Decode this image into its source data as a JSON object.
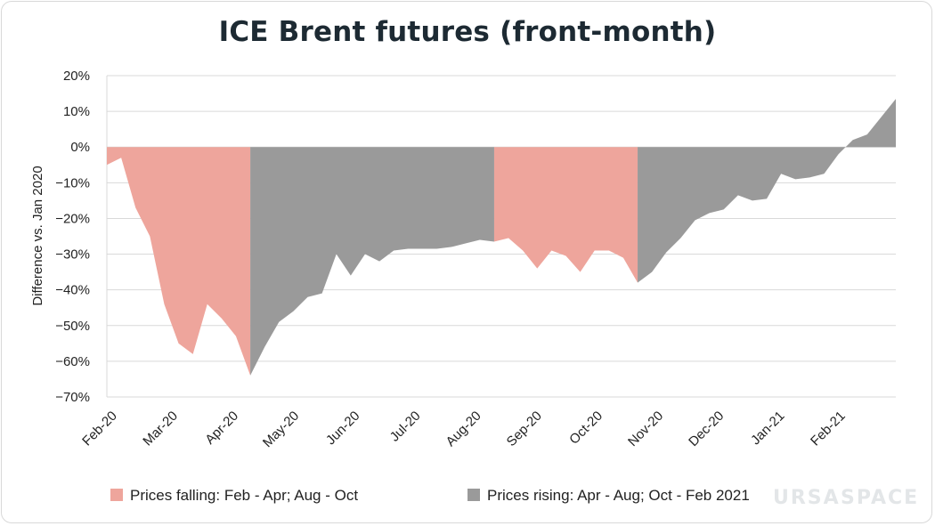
{
  "chart_data": {
    "type": "area",
    "title": "ICE Brent futures (front-month)",
    "ylabel": "Difference vs. Jan 2020",
    "xlabel": "",
    "ylim": [
      -70,
      20
    ],
    "yticks": [
      "20%",
      "10%",
      "0%",
      "−10%",
      "−20%",
      "−30%",
      "−40%",
      "−50%",
      "−60%",
      "−70%"
    ],
    "yticks_values": [
      20,
      10,
      0,
      -10,
      -20,
      -30,
      -40,
      -50,
      -60,
      -70
    ],
    "xticks": [
      "Feb-20",
      "Mar-20",
      "Apr-20",
      "May-20",
      "Jun-20",
      "Jul-20",
      "Aug-20",
      "Sep-20",
      "Oct-20",
      "Nov-20",
      "Dec-20",
      "Jan-21",
      "Feb-21"
    ],
    "grid": true,
    "legend_position": "bottom",
    "values": [
      -5,
      -3,
      -17,
      -25,
      -44,
      -55,
      -58,
      -44,
      -48,
      -53,
      -64,
      -56,
      -49,
      -46,
      -42,
      -41,
      -30,
      -36,
      -30,
      -32,
      -29,
      -28.5,
      -28.5,
      -28.5,
      -28,
      -27,
      -26,
      -26.5,
      -25.5,
      -29,
      -34,
      -29,
      -30.5,
      -35,
      -29,
      -29,
      -31,
      -38,
      -35,
      -29.5,
      -25.5,
      -20.5,
      -18.5,
      -17.5,
      -13.5,
      -15,
      -14.5,
      -7.5,
      -9,
      -8.5,
      -7.5,
      -2,
      2,
      3.5,
      8.5,
      13.5
    ],
    "series": [
      {
        "name": "Prices falling: Feb - Apr; Aug - Oct",
        "color": "#eea59c",
        "ranges": [
          [
            0,
            10
          ],
          [
            27,
            37
          ]
        ]
      },
      {
        "name": "Prices rising: Apr - Aug; Oct - Feb 2021",
        "color": "#9a9a9a",
        "ranges": [
          [
            10,
            27
          ],
          [
            37,
            55
          ]
        ]
      }
    ]
  },
  "logo": {
    "text_left": "URSA",
    "text_right": "SPACE"
  }
}
